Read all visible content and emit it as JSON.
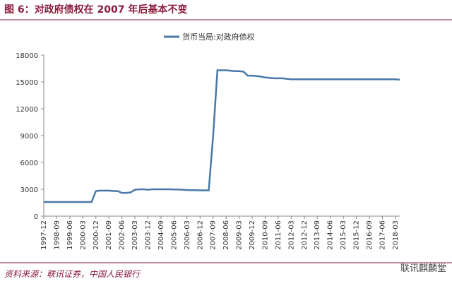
{
  "chart_data": {
    "type": "line",
    "title": "图 6：对政府债权在 2007 年后基本不变",
    "categories": [
      "1997-12",
      null,
      null,
      "1998-09",
      null,
      null,
      "1999-06",
      null,
      null,
      "2000-03",
      null,
      null,
      "2000-12",
      null,
      null,
      "2001-09",
      null,
      null,
      "2002-06",
      null,
      null,
      "2003-03",
      null,
      null,
      "2003-12",
      null,
      null,
      "2004-09",
      null,
      null,
      "2005-06",
      null,
      null,
      "2006-03",
      null,
      null,
      "2006-12",
      null,
      null,
      "2007-09",
      null,
      null,
      "2008-06",
      null,
      null,
      "2009-03",
      null,
      null,
      "2009-12",
      null,
      null,
      "2010-09",
      null,
      null,
      "2011-06",
      null,
      null,
      "2012-03",
      null,
      null,
      "2012-12",
      null,
      null,
      "2013-09",
      null,
      null,
      "2014-06",
      null,
      null,
      "2015-03",
      null,
      null,
      "2015-12",
      null,
      null,
      "2016-09",
      null,
      null,
      "2017-06",
      null,
      null,
      "2018-03",
      null
    ],
    "series": [
      {
        "name": "货币当局:对政府债权",
        "color": "#4a78a8",
        "values": [
          1583,
          1583,
          1583,
          1583,
          1583,
          1583,
          1583,
          1583,
          1583,
          1583,
          1583,
          1583,
          2800,
          2850,
          2850,
          2850,
          2800,
          2800,
          2600,
          2600,
          2650,
          2950,
          3000,
          3000,
          2950,
          3000,
          3000,
          3000,
          3000,
          3000,
          2980,
          2980,
          2950,
          2920,
          2900,
          2900,
          2880,
          2880,
          2880,
          8900,
          16300,
          16300,
          16300,
          16250,
          16200,
          16200,
          16150,
          15700,
          15700,
          15650,
          15600,
          15500,
          15450,
          15400,
          15400,
          15400,
          15350,
          15300,
          15300,
          15300,
          15300,
          15300,
          15300,
          15300,
          15300,
          15300,
          15300,
          15300,
          15300,
          15300,
          15300,
          15300,
          15300,
          15300,
          15300,
          15300,
          15300,
          15300,
          15300,
          15300,
          15300,
          15300,
          15250
        ]
      }
    ],
    "ylim": [
      0,
      18000
    ],
    "yticks": [
      0,
      3000,
      6000,
      9000,
      12000,
      15000,
      18000
    ]
  },
  "source": "资料来源：联讯证券，中国人民银行",
  "watermark": "联讯麒麟堂"
}
